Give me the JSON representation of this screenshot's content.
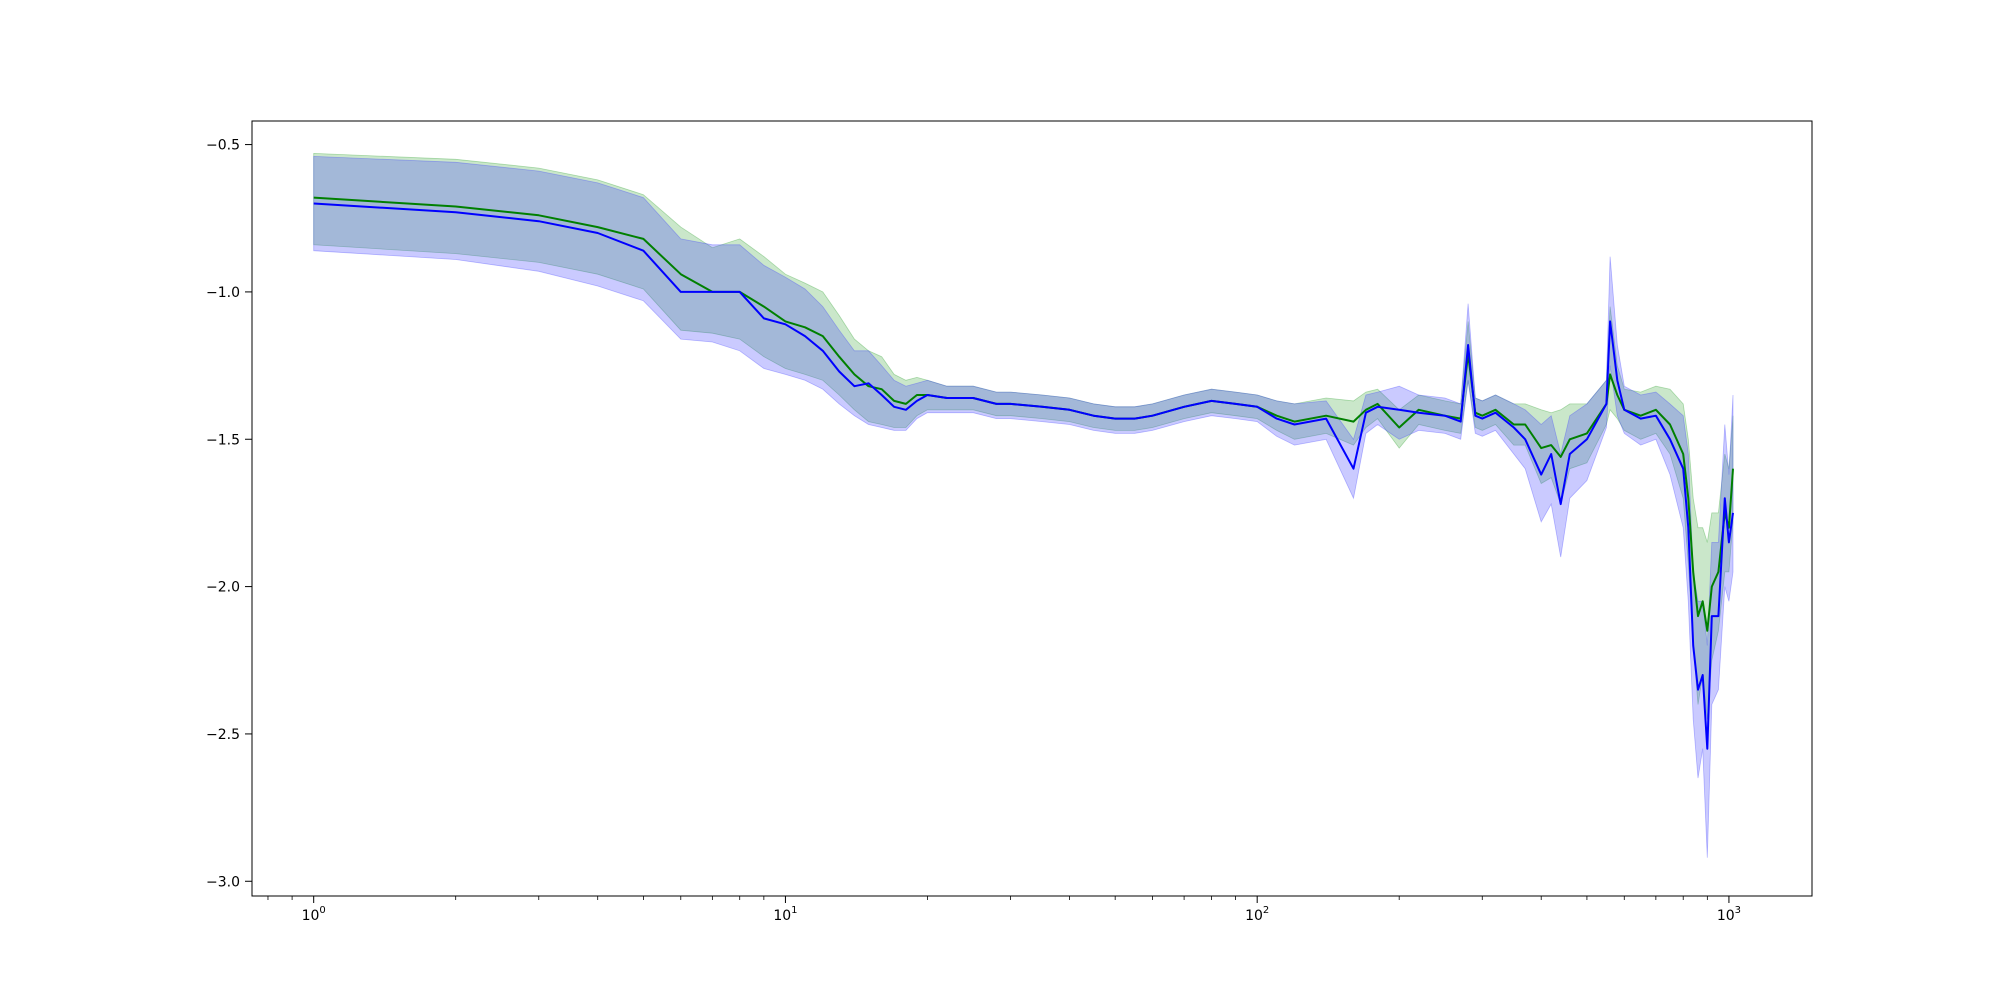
{
  "chart_data": {
    "type": "line",
    "title": "",
    "xlabel": "",
    "ylabel": "",
    "x_scale": "log",
    "xlim": [
      0.74,
      1500
    ],
    "ylim": [
      -3.05,
      -0.42
    ],
    "grid": false,
    "legend": "none",
    "x_ticks": [
      {
        "value": 1,
        "base": "10",
        "exp": "0"
      },
      {
        "value": 10,
        "base": "10",
        "exp": "1"
      },
      {
        "value": 100,
        "base": "10",
        "exp": "2"
      },
      {
        "value": 1000,
        "base": "10",
        "exp": "3"
      }
    ],
    "y_ticks": [
      {
        "value": -0.5,
        "label": "−0.5"
      },
      {
        "value": -1.0,
        "label": "−1.0"
      },
      {
        "value": -1.5,
        "label": "−1.5"
      },
      {
        "value": -2.0,
        "label": "−2.0"
      },
      {
        "value": -2.5,
        "label": "−2.5"
      },
      {
        "value": -3.0,
        "label": "−3.0"
      }
    ],
    "series": [
      {
        "color": "#008000",
        "band_color": "#2ca02c",
        "band_opacity": 0.25,
        "x": [
          1,
          2,
          3,
          4,
          5,
          6,
          7,
          8,
          9,
          10,
          11,
          12,
          13,
          14,
          15,
          16,
          17,
          18,
          19,
          20,
          22,
          25,
          28,
          30,
          35,
          40,
          45,
          50,
          55,
          60,
          70,
          80,
          90,
          100,
          110,
          120,
          140,
          160,
          170,
          180,
          200,
          220,
          250,
          270,
          280,
          290,
          300,
          320,
          350,
          370,
          400,
          420,
          440,
          460,
          500,
          550,
          560,
          580,
          600,
          650,
          700,
          750,
          800,
          820,
          840,
          860,
          880,
          900,
          920,
          950,
          980,
          1000,
          1020
        ],
        "y": [
          -0.68,
          -0.71,
          -0.74,
          -0.78,
          -0.82,
          -0.94,
          -1.0,
          -1.0,
          -1.05,
          -1.1,
          -1.12,
          -1.15,
          -1.22,
          -1.28,
          -1.32,
          -1.33,
          -1.37,
          -1.38,
          -1.35,
          -1.35,
          -1.36,
          -1.36,
          -1.38,
          -1.38,
          -1.39,
          -1.4,
          -1.42,
          -1.43,
          -1.43,
          -1.42,
          -1.39,
          -1.37,
          -1.38,
          -1.39,
          -1.42,
          -1.44,
          -1.42,
          -1.44,
          -1.4,
          -1.38,
          -1.46,
          -1.4,
          -1.42,
          -1.43,
          -1.21,
          -1.41,
          -1.42,
          -1.4,
          -1.45,
          -1.45,
          -1.53,
          -1.52,
          -1.56,
          -1.5,
          -1.48,
          -1.38,
          -1.28,
          -1.35,
          -1.4,
          -1.42,
          -1.4,
          -1.45,
          -1.55,
          -1.7,
          -1.95,
          -2.1,
          -2.05,
          -2.15,
          -2.0,
          -1.95,
          -1.75,
          -1.8,
          -1.6
        ],
        "lower": [
          -0.84,
          -0.87,
          -0.9,
          -0.94,
          -0.99,
          -1.13,
          -1.14,
          -1.16,
          -1.22,
          -1.26,
          -1.28,
          -1.3,
          -1.35,
          -1.4,
          -1.44,
          -1.45,
          -1.46,
          -1.46,
          -1.42,
          -1.4,
          -1.4,
          -1.4,
          -1.42,
          -1.42,
          -1.43,
          -1.44,
          -1.46,
          -1.47,
          -1.47,
          -1.46,
          -1.43,
          -1.41,
          -1.42,
          -1.43,
          -1.47,
          -1.5,
          -1.48,
          -1.52,
          -1.46,
          -1.43,
          -1.53,
          -1.45,
          -1.47,
          -1.48,
          -1.3,
          -1.46,
          -1.47,
          -1.45,
          -1.52,
          -1.52,
          -1.65,
          -1.63,
          -1.72,
          -1.6,
          -1.58,
          -1.45,
          -1.4,
          -1.43,
          -1.47,
          -1.5,
          -1.48,
          -1.55,
          -1.7,
          -1.92,
          -2.2,
          -2.4,
          -2.3,
          -2.45,
          -2.25,
          -2.15,
          -1.95,
          -1.95,
          -1.78
        ],
        "upper": [
          -0.53,
          -0.55,
          -0.58,
          -0.62,
          -0.67,
          -0.78,
          -0.85,
          -0.82,
          -0.88,
          -0.94,
          -0.97,
          -1.0,
          -1.08,
          -1.16,
          -1.2,
          -1.22,
          -1.28,
          -1.3,
          -1.29,
          -1.3,
          -1.32,
          -1.32,
          -1.34,
          -1.34,
          -1.35,
          -1.36,
          -1.38,
          -1.39,
          -1.39,
          -1.38,
          -1.35,
          -1.33,
          -1.34,
          -1.35,
          -1.37,
          -1.38,
          -1.36,
          -1.37,
          -1.34,
          -1.33,
          -1.4,
          -1.35,
          -1.37,
          -1.38,
          -1.1,
          -1.36,
          -1.37,
          -1.35,
          -1.38,
          -1.38,
          -1.4,
          -1.41,
          -1.4,
          -1.38,
          -1.38,
          -1.3,
          -1.05,
          -1.25,
          -1.33,
          -1.34,
          -1.32,
          -1.33,
          -1.38,
          -1.5,
          -1.7,
          -1.8,
          -1.8,
          -1.85,
          -1.75,
          -1.75,
          -1.55,
          -1.6,
          -1.42
        ]
      },
      {
        "color": "#0000ff",
        "band_color": "#4040ff",
        "band_opacity": 0.28,
        "x": [
          1,
          2,
          3,
          4,
          5,
          6,
          7,
          8,
          9,
          10,
          11,
          12,
          13,
          14,
          15,
          16,
          17,
          18,
          19,
          20,
          22,
          25,
          28,
          30,
          35,
          40,
          45,
          50,
          55,
          60,
          70,
          80,
          90,
          100,
          110,
          120,
          140,
          160,
          170,
          180,
          200,
          220,
          250,
          270,
          280,
          290,
          300,
          320,
          350,
          370,
          400,
          420,
          440,
          460,
          500,
          550,
          560,
          580,
          600,
          650,
          700,
          750,
          800,
          820,
          840,
          860,
          880,
          900,
          920,
          950,
          980,
          1000,
          1020
        ],
        "y": [
          -0.7,
          -0.73,
          -0.76,
          -0.8,
          -0.86,
          -1.0,
          -1.0,
          -1.0,
          -1.09,
          -1.11,
          -1.15,
          -1.2,
          -1.27,
          -1.32,
          -1.31,
          -1.35,
          -1.39,
          -1.4,
          -1.37,
          -1.35,
          -1.36,
          -1.36,
          -1.38,
          -1.38,
          -1.39,
          -1.4,
          -1.42,
          -1.43,
          -1.43,
          -1.42,
          -1.39,
          -1.37,
          -1.38,
          -1.39,
          -1.43,
          -1.45,
          -1.43,
          -1.6,
          -1.41,
          -1.39,
          -1.4,
          -1.41,
          -1.42,
          -1.44,
          -1.18,
          -1.42,
          -1.43,
          -1.41,
          -1.46,
          -1.5,
          -1.62,
          -1.55,
          -1.72,
          -1.55,
          -1.5,
          -1.38,
          -1.1,
          -1.3,
          -1.4,
          -1.43,
          -1.42,
          -1.5,
          -1.6,
          -1.8,
          -2.2,
          -2.35,
          -2.3,
          -2.55,
          -2.1,
          -2.1,
          -1.7,
          -1.85,
          -1.75
        ],
        "lower": [
          -0.86,
          -0.89,
          -0.93,
          -0.98,
          -1.03,
          -1.16,
          -1.17,
          -1.2,
          -1.26,
          -1.28,
          -1.3,
          -1.33,
          -1.38,
          -1.42,
          -1.45,
          -1.46,
          -1.47,
          -1.47,
          -1.43,
          -1.41,
          -1.41,
          -1.41,
          -1.43,
          -1.43,
          -1.44,
          -1.45,
          -1.47,
          -1.48,
          -1.48,
          -1.47,
          -1.44,
          -1.42,
          -1.43,
          -1.44,
          -1.49,
          -1.52,
          -1.5,
          -1.7,
          -1.48,
          -1.45,
          -1.5,
          -1.47,
          -1.48,
          -1.5,
          -1.3,
          -1.48,
          -1.49,
          -1.47,
          -1.55,
          -1.6,
          -1.78,
          -1.72,
          -1.9,
          -1.7,
          -1.64,
          -1.46,
          -1.25,
          -1.42,
          -1.48,
          -1.52,
          -1.5,
          -1.62,
          -1.8,
          -2.05,
          -2.45,
          -2.65,
          -2.55,
          -2.92,
          -2.4,
          -2.35,
          -2.0,
          -2.05,
          -1.95
        ],
        "upper": [
          -0.54,
          -0.56,
          -0.59,
          -0.63,
          -0.68,
          -0.82,
          -0.84,
          -0.84,
          -0.91,
          -0.95,
          -0.99,
          -1.05,
          -1.13,
          -1.2,
          -1.2,
          -1.25,
          -1.3,
          -1.32,
          -1.31,
          -1.3,
          -1.32,
          -1.32,
          -1.34,
          -1.34,
          -1.35,
          -1.36,
          -1.38,
          -1.39,
          -1.39,
          -1.38,
          -1.35,
          -1.33,
          -1.34,
          -1.35,
          -1.37,
          -1.38,
          -1.37,
          -1.5,
          -1.35,
          -1.34,
          -1.32,
          -1.35,
          -1.36,
          -1.38,
          -1.04,
          -1.36,
          -1.37,
          -1.35,
          -1.38,
          -1.4,
          -1.45,
          -1.42,
          -1.55,
          -1.42,
          -1.38,
          -1.3,
          -0.88,
          -1.18,
          -1.32,
          -1.35,
          -1.34,
          -1.38,
          -1.42,
          -1.55,
          -1.95,
          -2.05,
          -2.05,
          -2.2,
          -1.85,
          -1.85,
          -1.45,
          -1.62,
          -1.35
        ]
      }
    ]
  }
}
